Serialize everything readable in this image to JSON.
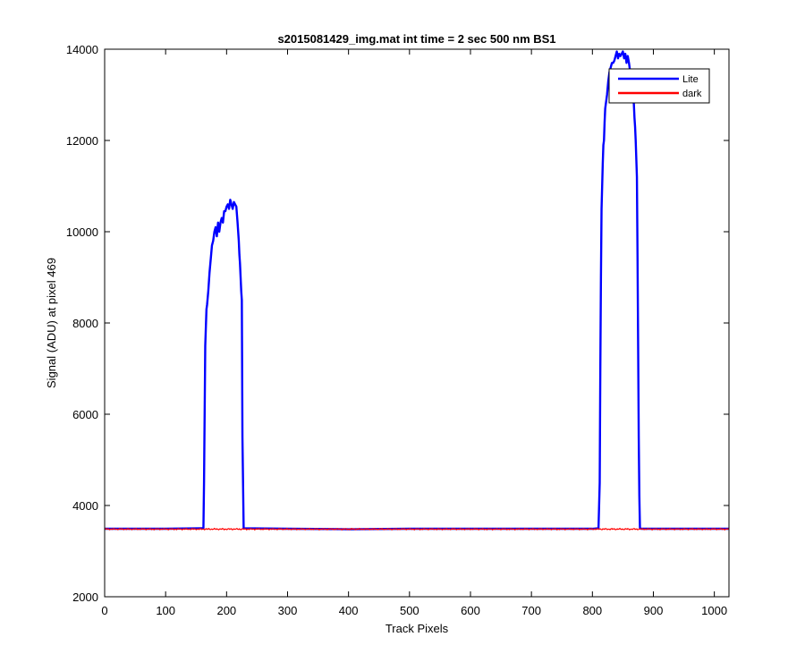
{
  "chart_data": {
    "type": "line",
    "title": "s2015081429_img.mat int time = 2 sec  500 nm BS1",
    "xlabel": "Track Pixels",
    "ylabel": "Signal (ADU) at pixel 469",
    "xlim": [
      0,
      1024
    ],
    "ylim": [
      2000,
      14000
    ],
    "xticks": [
      0,
      100,
      200,
      300,
      400,
      500,
      600,
      700,
      800,
      900,
      1000
    ],
    "yticks": [
      2000,
      4000,
      6000,
      8000,
      10000,
      12000,
      14000
    ],
    "grid": false,
    "legend_position": "top-right",
    "series": [
      {
        "name": "Lite",
        "color": "#0000ff",
        "x": [
          0,
          100,
          160,
          162,
          163,
          164,
          165,
          167,
          168,
          170,
          172,
          174,
          176,
          178,
          180,
          182,
          184,
          186,
          188,
          190,
          192,
          194,
          196,
          198,
          200,
          202,
          204,
          206,
          208,
          210,
          212,
          214,
          216,
          218,
          219,
          220,
          221,
          222,
          223,
          224,
          225,
          226,
          228,
          300,
          400,
          500,
          600,
          700,
          800,
          810,
          812,
          813,
          814,
          815,
          816,
          817,
          818,
          819,
          820,
          821,
          822,
          823,
          824,
          826,
          828,
          830,
          832,
          834,
          836,
          838,
          840,
          842,
          844,
          846,
          848,
          850,
          852,
          854,
          856,
          858,
          860,
          862,
          864,
          866,
          868,
          869,
          870,
          871,
          872,
          873,
          874,
          875,
          876,
          877,
          878,
          880,
          900,
          1000,
          1024
        ],
        "y": [
          3490,
          3490,
          3500,
          3500,
          4500,
          6000,
          7500,
          8300,
          8400,
          8700,
          9100,
          9400,
          9700,
          9800,
          10000,
          10100,
          9900,
          10200,
          10000,
          10200,
          10300,
          10200,
          10450,
          10450,
          10550,
          10600,
          10500,
          10700,
          10600,
          10500,
          10650,
          10600,
          10550,
          10200,
          10000,
          9800,
          9500,
          9300,
          9000,
          8700,
          8500,
          5500,
          3500,
          3490,
          3480,
          3490,
          3490,
          3490,
          3490,
          3500,
          4500,
          7000,
          9000,
          10500,
          11000,
          11500,
          11900,
          12000,
          12400,
          12700,
          12800,
          12900,
          13000,
          13300,
          13500,
          13600,
          13700,
          13700,
          13750,
          13850,
          13950,
          13800,
          13900,
          13850,
          13900,
          13950,
          13800,
          13900,
          13700,
          13850,
          13700,
          13500,
          13300,
          13000,
          12800,
          12500,
          12300,
          12000,
          11600,
          11200,
          9500,
          7500,
          5500,
          4200,
          3500,
          3490,
          3490,
          3490,
          3490
        ]
      },
      {
        "name": "dark",
        "color": "#ff0000",
        "x": [
          0,
          100,
          200,
          300,
          400,
          500,
          600,
          700,
          800,
          900,
          1000,
          1024
        ],
        "y": [
          3480,
          3485,
          3480,
          3485,
          3480,
          3485,
          3480,
          3485,
          3480,
          3485,
          3480,
          3480
        ]
      }
    ]
  }
}
